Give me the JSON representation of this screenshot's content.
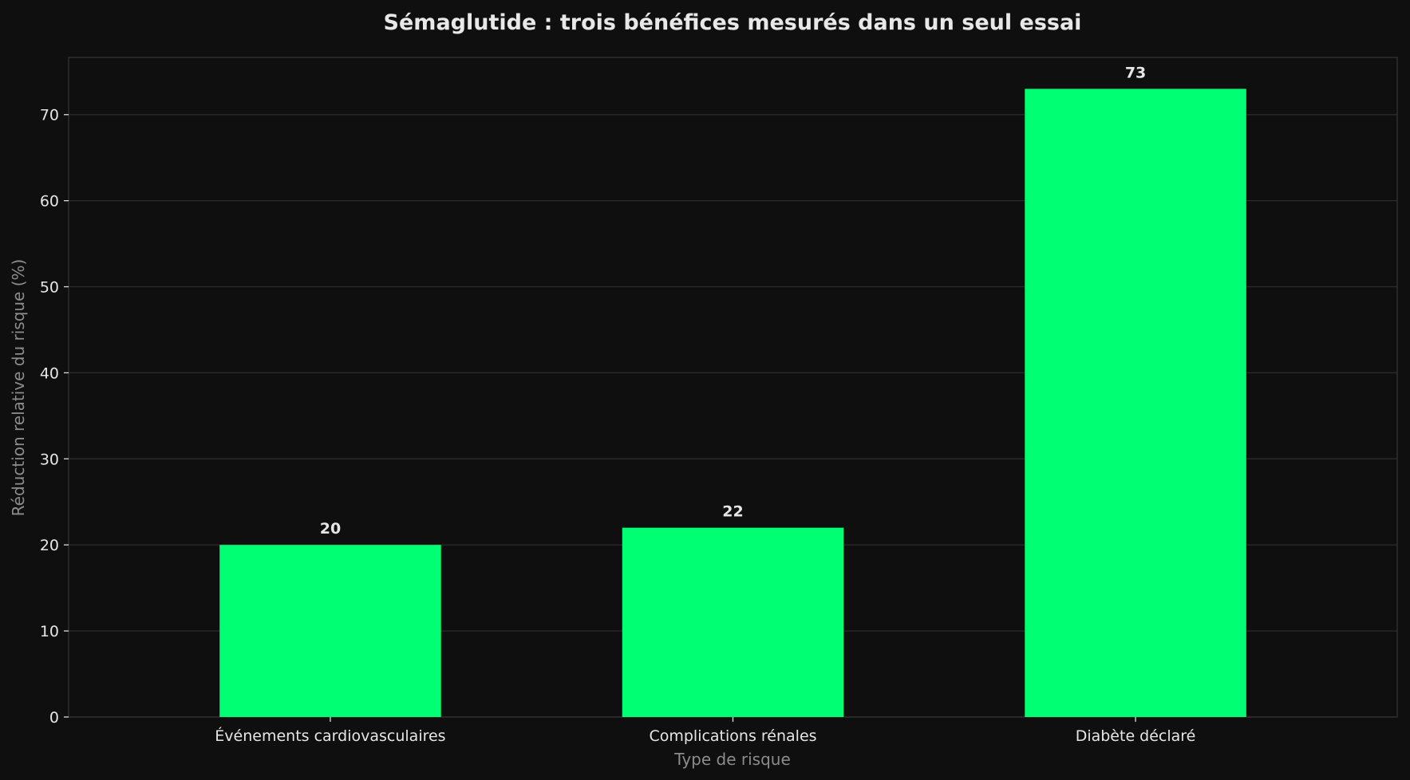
{
  "chart_data": {
    "type": "bar",
    "title": "Sémaglutide : trois bénéfices mesurés dans un seul essai",
    "xlabel": "Type de risque",
    "ylabel": "Réduction relative du risque (%)",
    "categories": [
      "Événements cardiovasculaires",
      "Complications rénales",
      "Diabète déclaré"
    ],
    "values": [
      20,
      22,
      73
    ],
    "value_labels": [
      "20",
      "22",
      "73"
    ],
    "yticks": [
      "0",
      "10",
      "20",
      "30",
      "40",
      "50",
      "60",
      "70"
    ],
    "ylim": [
      0,
      76.65
    ],
    "grid": true,
    "bar_color": "#00ff73",
    "background_color": "#0f0f0f"
  }
}
